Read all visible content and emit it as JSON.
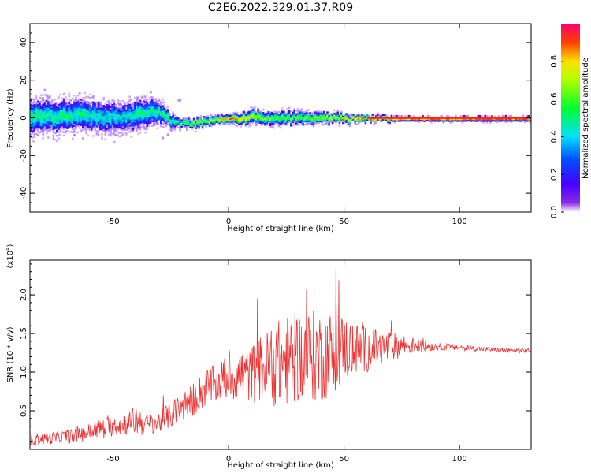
{
  "title": "C2E6.2022.329.01.37.R09",
  "colors": {
    "snr_line": "#ef3030",
    "trace_core": "#ff1f1f",
    "axis": "#000000"
  },
  "chart_data": [
    {
      "type": "heatmap",
      "xlabel": "Height of straight line (km)",
      "ylabel": "Frequency (Hz)",
      "xlim": [
        -86,
        131
      ],
      "ylim": [
        -50,
        50
      ],
      "xticks": [
        -50,
        0,
        50,
        100
      ],
      "yticks": [
        -40,
        -20,
        0,
        20,
        40
      ],
      "colorbar": {
        "label": "Normalized spectral amplitude",
        "range": [
          0.0,
          1.0
        ],
        "ticks": [
          "0.0",
          "0.2",
          "0.4",
          "0.6",
          "0.8"
        ],
        "tick_values": [
          0.0,
          0.2,
          0.4,
          0.6,
          0.8
        ],
        "colormap": "rainbow"
      },
      "trace": {
        "x": [
          -86,
          -75,
          -65,
          -55,
          -45,
          -40,
          -35,
          -30,
          -25,
          -22,
          -18,
          -12,
          -5,
          0,
          10,
          20,
          30,
          40,
          50,
          60,
          70,
          80,
          90,
          100,
          110,
          120,
          131
        ],
        "center": [
          1,
          1,
          2,
          1,
          1,
          2,
          4,
          3,
          -1,
          -2,
          -3,
          -2,
          -1,
          0,
          1,
          0.5,
          0.5,
          0.5,
          0,
          0,
          0,
          0,
          0,
          0,
          0,
          0,
          0
        ],
        "spread": [
          8,
          7,
          7,
          7,
          6,
          7,
          6,
          5,
          3,
          2,
          2,
          2,
          2,
          2,
          3,
          3,
          3,
          2.5,
          2,
          1.5,
          1.2,
          1.2,
          1.2,
          1.2,
          1.2,
          1.2,
          1.2
        ],
        "peak": [
          0.5,
          0.5,
          0.5,
          0.45,
          0.45,
          0.5,
          0.5,
          0.5,
          0.55,
          0.55,
          0.6,
          0.65,
          0.7,
          0.85,
          0.7,
          0.6,
          0.6,
          0.65,
          0.8,
          0.8,
          0.82,
          0.85,
          0.88,
          0.9,
          0.92,
          0.92,
          0.92
        ]
      }
    },
    {
      "type": "line",
      "xlabel": "Height of straight line (km)",
      "ylabel": "SNR (10 * v/v)",
      "yscale_label": "(x10",
      "yscale_exp": "4",
      "yscale_close": ")",
      "xlim": [
        -86,
        131
      ],
      "ylim": [
        0,
        2.45
      ],
      "xticks": [
        -50,
        0,
        50,
        100
      ],
      "yticks": [
        0.5,
        1.0,
        1.5,
        2.0
      ],
      "ytick_labels": [
        "0.5",
        "1.0",
        "1.5",
        "2.0"
      ],
      "series": [
        {
          "x": [
            -86,
            -75,
            -65,
            -55,
            -45,
            -40,
            -35,
            -30,
            -25,
            -20,
            -15,
            -10,
            -5,
            0,
            5,
            10,
            15,
            20,
            25,
            30,
            35,
            40,
            45,
            50,
            55,
            60,
            65,
            70,
            75,
            80,
            90,
            100,
            110,
            120,
            131
          ],
          "mean": [
            0.12,
            0.15,
            0.18,
            0.28,
            0.33,
            0.38,
            0.32,
            0.35,
            0.45,
            0.55,
            0.65,
            0.8,
            0.85,
            0.95,
            0.95,
            1.0,
            1.05,
            1.1,
            1.15,
            1.2,
            1.2,
            1.2,
            1.25,
            1.3,
            1.3,
            1.3,
            1.3,
            1.33,
            1.35,
            1.35,
            1.33,
            1.32,
            1.3,
            1.28,
            1.28
          ],
          "noise": [
            0.07,
            0.08,
            0.1,
            0.12,
            0.15,
            0.2,
            0.15,
            0.15,
            0.18,
            0.2,
            0.22,
            0.25,
            0.25,
            0.3,
            0.35,
            0.4,
            0.45,
            0.55,
            0.6,
            0.6,
            0.6,
            0.6,
            0.55,
            0.45,
            0.35,
            0.3,
            0.25,
            0.2,
            0.15,
            0.1,
            0.05,
            0.04,
            0.03,
            0.03,
            0.03
          ]
        }
      ]
    }
  ]
}
